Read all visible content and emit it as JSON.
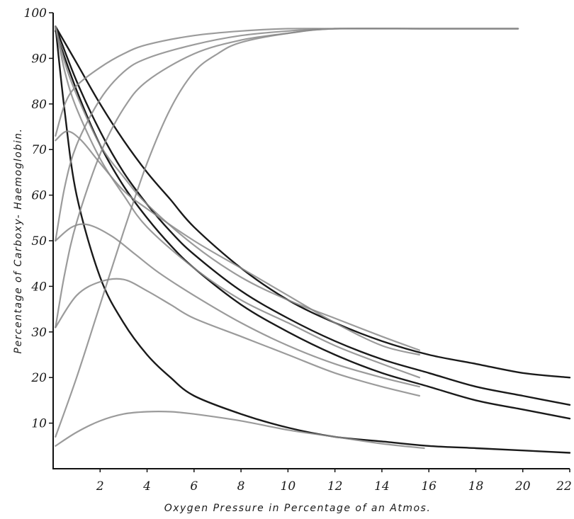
{
  "chart_data": {
    "type": "line",
    "title": "",
    "xlabel": "Oxygen Pressure in Percentage of an Atmos.",
    "ylabel": "Percentage of Carboxy- Haemoglobin.",
    "xlim": [
      0,
      22
    ],
    "ylim": [
      0,
      100
    ],
    "xticks": [
      {
        "value": 2,
        "label": "2"
      },
      {
        "value": 4,
        "label": "4"
      },
      {
        "value": 6,
        "label": "6"
      },
      {
        "value": 8,
        "label": "8"
      },
      {
        "value": 10,
        "label": "10"
      },
      {
        "value": 12,
        "label": "12"
      },
      {
        "value": 14,
        "label": "14"
      },
      {
        "value": 16,
        "label": "16"
      },
      {
        "value": 18,
        "label": "18"
      },
      {
        "value": 20,
        "label": "20"
      },
      {
        "value": 22,
        "label": "22"
      }
    ],
    "yticks": [
      {
        "value": 10,
        "label": "10"
      },
      {
        "value": 20,
        "label": "20"
      },
      {
        "value": 30,
        "label": "30"
      },
      {
        "value": 40,
        "label": "40"
      },
      {
        "value": 50,
        "label": "50"
      },
      {
        "value": 60,
        "label": "60"
      },
      {
        "value": 70,
        "label": "70"
      },
      {
        "value": 80,
        "label": "80"
      },
      {
        "value": 90,
        "label": "90"
      },
      {
        "value": 100,
        "label": "100"
      }
    ],
    "grid": false,
    "legend": "none",
    "colors": {
      "dark": "#1a1a1a",
      "gray": "#8a8a8a",
      "axis": "#111111"
    },
    "series": [
      {
        "tone": "dark",
        "points": [
          [
            0.1,
            97
          ],
          [
            0.5,
            78
          ],
          [
            1,
            60
          ],
          [
            2,
            42
          ],
          [
            3,
            32
          ],
          [
            4,
            25
          ],
          [
            5,
            20
          ],
          [
            6,
            16
          ],
          [
            8,
            12
          ],
          [
            10,
            9
          ],
          [
            12,
            7
          ],
          [
            14,
            6
          ],
          [
            16,
            5
          ],
          [
            18,
            4.5
          ],
          [
            20,
            4
          ],
          [
            22,
            3.5
          ]
        ]
      },
      {
        "tone": "dark",
        "points": [
          [
            0.1,
            96
          ],
          [
            1,
            83
          ],
          [
            2,
            71
          ],
          [
            3,
            62
          ],
          [
            4,
            55
          ],
          [
            5,
            49
          ],
          [
            6,
            44
          ],
          [
            8,
            36
          ],
          [
            10,
            30
          ],
          [
            12,
            25
          ],
          [
            14,
            21
          ],
          [
            16,
            18
          ],
          [
            18,
            15
          ],
          [
            20,
            13
          ],
          [
            22,
            11
          ]
        ]
      },
      {
        "tone": "dark",
        "points": [
          [
            0.1,
            97
          ],
          [
            1,
            85
          ],
          [
            2,
            74
          ],
          [
            3,
            65
          ],
          [
            4,
            58
          ],
          [
            5,
            52
          ],
          [
            6,
            47
          ],
          [
            8,
            39
          ],
          [
            10,
            33
          ],
          [
            12,
            28
          ],
          [
            14,
            24
          ],
          [
            16,
            21
          ],
          [
            18,
            18
          ],
          [
            20,
            16
          ],
          [
            22,
            14
          ]
        ]
      },
      {
        "tone": "dark",
        "points": [
          [
            0.1,
            97
          ],
          [
            1,
            89
          ],
          [
            2,
            80
          ],
          [
            3,
            72
          ],
          [
            4,
            65
          ],
          [
            5,
            59
          ],
          [
            6,
            53
          ],
          [
            8,
            44
          ],
          [
            10,
            37
          ],
          [
            12,
            32
          ],
          [
            14,
            28
          ],
          [
            16,
            25
          ],
          [
            18,
            23
          ],
          [
            20,
            21
          ],
          [
            22,
            20
          ]
        ]
      },
      {
        "tone": "gray",
        "points": [
          [
            0.1,
            97
          ],
          [
            0.5,
            89
          ],
          [
            1,
            82
          ],
          [
            2,
            71
          ],
          [
            3,
            64
          ],
          [
            4,
            58
          ],
          [
            6,
            49
          ],
          [
            8,
            42
          ],
          [
            10,
            37
          ],
          [
            12,
            33
          ],
          [
            14,
            29
          ],
          [
            15.6,
            26
          ]
        ]
      },
      {
        "tone": "gray",
        "points": [
          [
            0.1,
            97
          ],
          [
            0.5,
            87
          ],
          [
            1,
            79
          ],
          [
            2,
            68
          ],
          [
            3,
            60
          ],
          [
            4,
            53
          ],
          [
            6,
            44
          ],
          [
            8,
            37
          ],
          [
            10,
            32
          ],
          [
            12,
            27
          ],
          [
            14,
            23
          ],
          [
            15.6,
            20
          ]
        ]
      },
      {
        "tone": "gray",
        "points": [
          [
            0.1,
            72
          ],
          [
            0.6,
            74
          ],
          [
            1.2,
            72
          ],
          [
            2,
            67
          ],
          [
            3,
            61
          ],
          [
            4,
            57
          ],
          [
            6,
            50
          ],
          [
            8,
            44
          ],
          [
            10,
            38
          ],
          [
            12,
            32
          ],
          [
            14,
            27
          ],
          [
            15.6,
            25
          ]
        ]
      },
      {
        "tone": "gray",
        "points": [
          [
            0.1,
            50
          ],
          [
            0.8,
            53
          ],
          [
            1.5,
            53.5
          ],
          [
            2.5,
            51
          ],
          [
            3.5,
            47
          ],
          [
            4.5,
            43
          ],
          [
            6,
            38
          ],
          [
            8,
            32
          ],
          [
            10,
            27
          ],
          [
            12,
            23
          ],
          [
            14,
            20
          ],
          [
            15.6,
            18
          ]
        ]
      },
      {
        "tone": "gray",
        "points": [
          [
            0.1,
            31
          ],
          [
            1,
            38
          ],
          [
            2,
            41
          ],
          [
            3,
            41.5
          ],
          [
            4,
            39
          ],
          [
            5,
            36
          ],
          [
            6,
            33
          ],
          [
            8,
            29
          ],
          [
            10,
            25
          ],
          [
            12,
            21
          ],
          [
            14,
            18
          ],
          [
            15.6,
            16
          ]
        ]
      },
      {
        "tone": "gray",
        "points": [
          [
            0.1,
            5
          ],
          [
            1,
            8
          ],
          [
            2,
            10.5
          ],
          [
            3,
            12
          ],
          [
            4,
            12.5
          ],
          [
            5,
            12.5
          ],
          [
            6,
            12
          ],
          [
            8,
            10.5
          ],
          [
            10,
            8.5
          ],
          [
            12,
            7
          ],
          [
            14,
            5.5
          ],
          [
            15.8,
            4.5
          ]
        ]
      },
      {
        "tone": "gray",
        "points": [
          [
            0.1,
            73
          ],
          [
            0.5,
            80
          ],
          [
            1,
            84
          ],
          [
            2,
            88
          ],
          [
            3,
            91
          ],
          [
            4,
            93
          ],
          [
            6,
            95
          ],
          [
            8,
            96
          ],
          [
            10,
            96.5
          ],
          [
            12,
            96.5
          ],
          [
            16,
            96.5
          ],
          [
            19.8,
            96.5
          ]
        ]
      },
      {
        "tone": "gray",
        "points": [
          [
            0.1,
            50
          ],
          [
            0.5,
            62
          ],
          [
            1,
            71
          ],
          [
            2,
            81
          ],
          [
            3,
            87
          ],
          [
            4,
            90
          ],
          [
            6,
            93
          ],
          [
            8,
            95
          ],
          [
            10,
            96
          ],
          [
            12,
            96.5
          ],
          [
            16,
            96.5
          ],
          [
            19.8,
            96.5
          ]
        ]
      },
      {
        "tone": "gray",
        "points": [
          [
            0.1,
            31
          ],
          [
            0.5,
            43
          ],
          [
            1,
            54
          ],
          [
            2,
            69
          ],
          [
            3,
            79
          ],
          [
            4,
            85
          ],
          [
            6,
            91
          ],
          [
            8,
            94
          ],
          [
            10,
            95.5
          ],
          [
            12,
            96.5
          ],
          [
            16,
            96.5
          ],
          [
            19.8,
            96.5
          ]
        ]
      },
      {
        "tone": "gray",
        "points": [
          [
            0.1,
            7
          ],
          [
            1,
            20
          ],
          [
            2,
            36
          ],
          [
            3,
            52
          ],
          [
            4,
            67
          ],
          [
            5,
            79
          ],
          [
            6,
            87
          ],
          [
            7,
            91
          ],
          [
            8,
            93.5
          ],
          [
            10,
            95.5
          ],
          [
            12,
            96.5
          ],
          [
            16,
            96.5
          ],
          [
            19.8,
            96.5
          ]
        ]
      }
    ]
  }
}
